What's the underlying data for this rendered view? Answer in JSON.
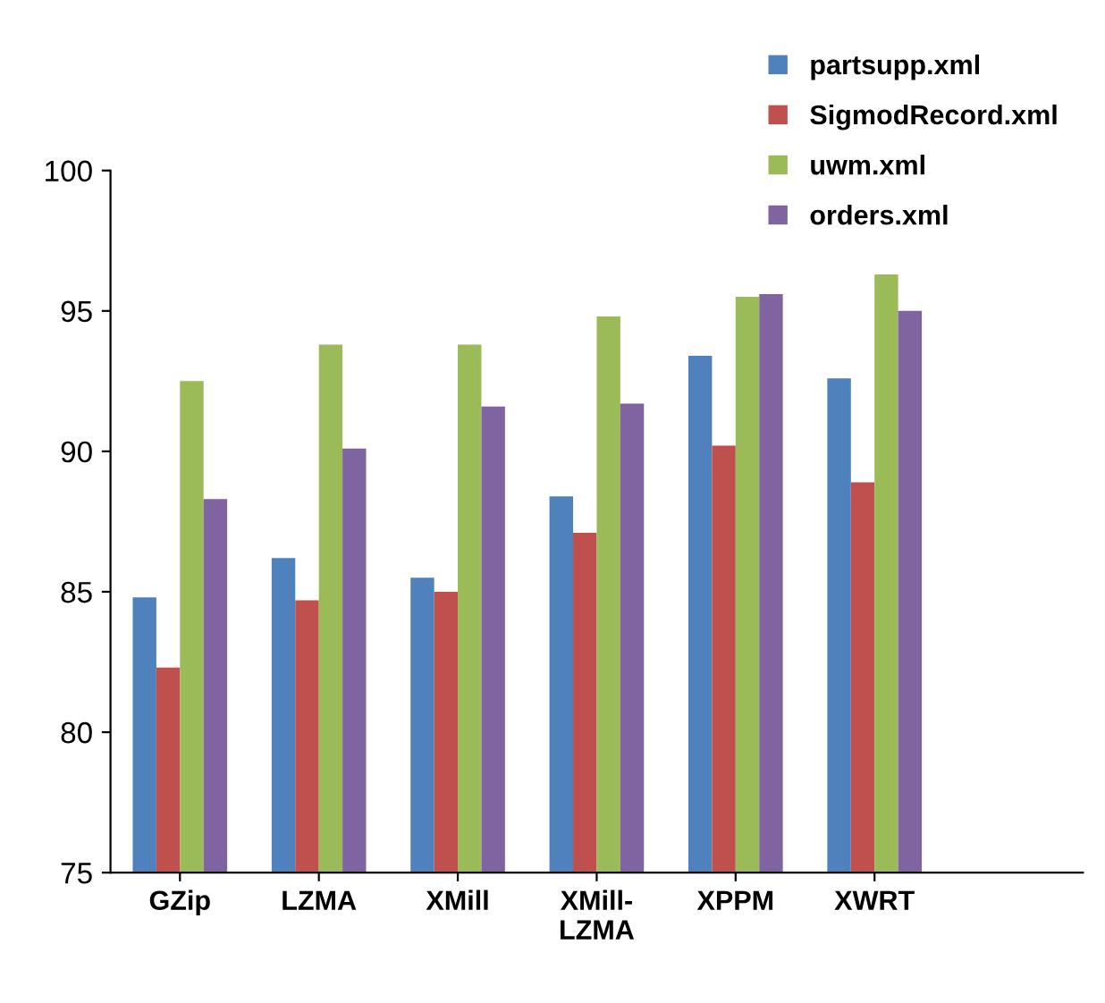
{
  "chart_data": {
    "type": "bar",
    "categories": [
      "GZip",
      "LZMA",
      "XMill",
      "XMill-\nLZMA",
      "XPPM",
      "XWRT"
    ],
    "series": [
      {
        "name": "partsupp.xml",
        "color": "#4f81bd",
        "values": [
          84.8,
          86.2,
          85.5,
          88.4,
          93.4,
          92.6
        ]
      },
      {
        "name": "SigmodRecord.xml",
        "color": "#c0504d",
        "values": [
          82.3,
          84.7,
          85.0,
          87.1,
          90.2,
          88.9
        ]
      },
      {
        "name": "uwm.xml",
        "color": "#9bbb59",
        "values": [
          92.5,
          93.8,
          93.8,
          94.8,
          95.5,
          96.3
        ]
      },
      {
        "name": "orders.xml",
        "color": "#8064a2",
        "values": [
          88.3,
          90.1,
          91.6,
          91.7,
          95.6,
          95.0
        ]
      }
    ],
    "ylim": [
      75,
      100
    ],
    "yticks": [
      75,
      80,
      85,
      90,
      95,
      100
    ],
    "grid": false,
    "legend": "top right"
  }
}
